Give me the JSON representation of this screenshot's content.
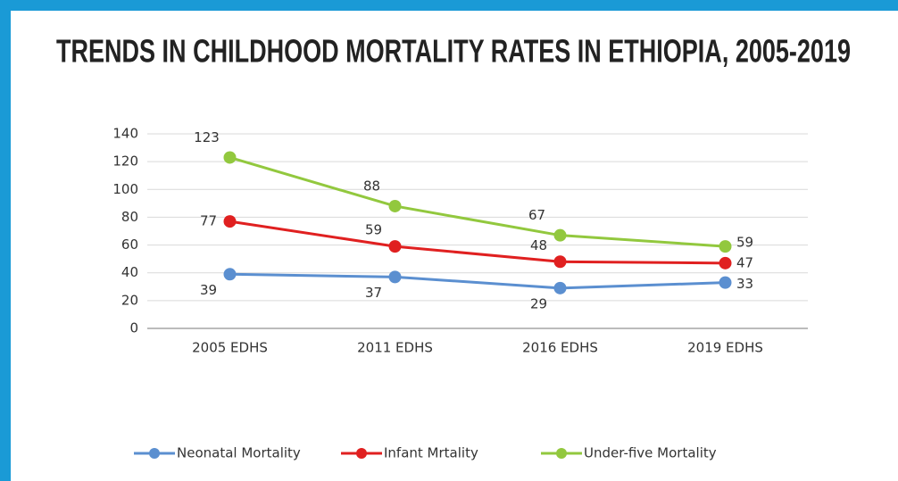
{
  "chart_data": {
    "type": "line",
    "title": "TRENDS IN CHILDHOOD MORTALITY RATES IN ETHIOPIA, 2005-2019",
    "categories": [
      "2005 EDHS",
      "2011 EDHS",
      "2016 EDHS",
      "2019 EDHS"
    ],
    "series": [
      {
        "name": "Neonatal Mortality",
        "color": "#5b8fd0",
        "values": [
          39,
          37,
          29,
          33
        ]
      },
      {
        "name": "Infant Mrtality",
        "color": "#e02020",
        "values": [
          77,
          59,
          48,
          47
        ]
      },
      {
        "name": "Under-five Mortality",
        "color": "#92c83e",
        "values": [
          123,
          88,
          67,
          59
        ]
      }
    ],
    "ylim": [
      0,
      140
    ],
    "yticks": [
      0,
      20,
      40,
      60,
      80,
      100,
      120,
      140
    ],
    "grid": true,
    "legend": "bottom"
  }
}
